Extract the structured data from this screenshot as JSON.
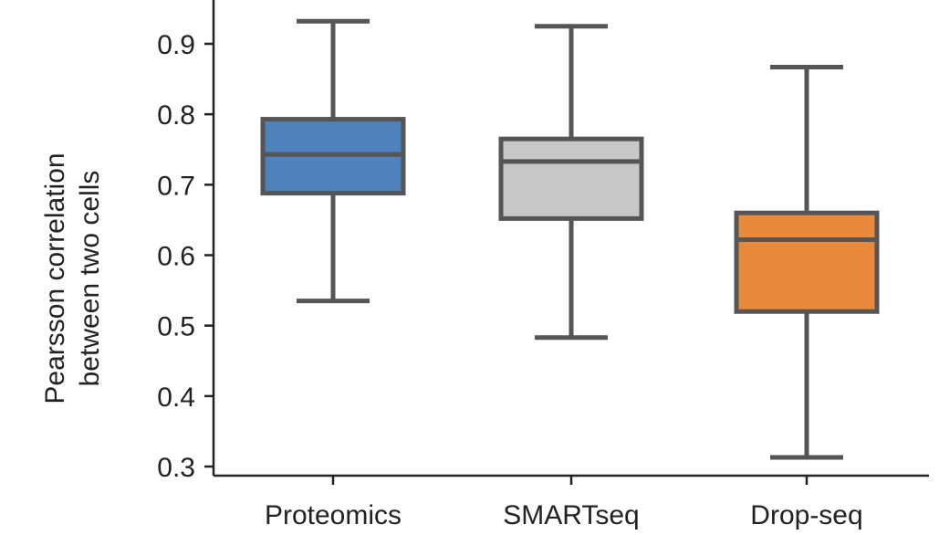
{
  "chart_data": {
    "type": "box",
    "title": "",
    "xlabel": "",
    "ylabel_lines": [
      "Pearsson correlation",
      "between two cells"
    ],
    "ylim": [
      0.3,
      0.95
    ],
    "yticks": [
      0.3,
      0.4,
      0.5,
      0.6,
      0.7,
      0.8,
      0.9
    ],
    "ytick_labels": [
      "0.3",
      "0.4",
      "0.5",
      "0.6",
      "0.7",
      "0.8",
      "0.9"
    ],
    "grid": false,
    "categories": [
      "Proteomics",
      "SMARTseq",
      "Drop-seq"
    ],
    "boxes": [
      {
        "label": "Proteomics",
        "whisker_low": 0.535,
        "q1": 0.688,
        "median": 0.743,
        "q3": 0.793,
        "whisker_high": 0.932,
        "color": "#4f81bd"
      },
      {
        "label": "SMARTseq",
        "whisker_low": 0.483,
        "q1": 0.652,
        "median": 0.733,
        "q3": 0.765,
        "whisker_high": 0.925,
        "color": "#c8c8c8"
      },
      {
        "label": "Drop-seq",
        "whisker_low": 0.313,
        "q1": 0.52,
        "median": 0.622,
        "q3": 0.66,
        "whisker_high": 0.867,
        "color": "#e98a3a"
      }
    ]
  }
}
